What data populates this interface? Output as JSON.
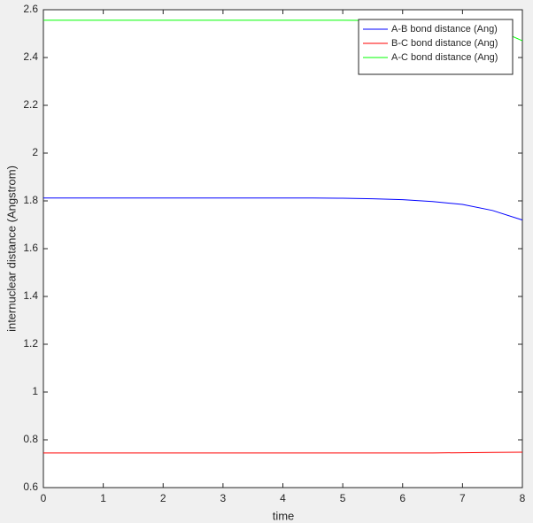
{
  "chart_data": {
    "type": "line",
    "x": [
      0,
      0.5,
      1,
      1.5,
      2,
      2.5,
      3,
      3.5,
      4,
      4.5,
      5,
      5.5,
      6,
      6.5,
      7,
      7.5,
      8
    ],
    "series": [
      {
        "name": "A-B bond distance (Ang)",
        "color": "#0000ff",
        "values": [
          1.812,
          1.812,
          1.812,
          1.812,
          1.812,
          1.812,
          1.812,
          1.812,
          1.812,
          1.812,
          1.811,
          1.809,
          1.805,
          1.797,
          1.785,
          1.76,
          1.72
        ]
      },
      {
        "name": "B-C bond distance (Ang)",
        "color": "#ff0000",
        "values": [
          0.745,
          0.745,
          0.745,
          0.745,
          0.745,
          0.745,
          0.745,
          0.745,
          0.745,
          0.745,
          0.745,
          0.745,
          0.745,
          0.745,
          0.746,
          0.747,
          0.748
        ]
      },
      {
        "name": "A-C bond distance (Ang)",
        "color": "#00ff00",
        "values": [
          2.556,
          2.556,
          2.556,
          2.556,
          2.556,
          2.556,
          2.556,
          2.556,
          2.556,
          2.556,
          2.556,
          2.555,
          2.555,
          2.552,
          2.543,
          2.525,
          2.47
        ]
      }
    ],
    "xlabel": "time",
    "ylabel": "internuclear distance (Angstrom)",
    "xlim": [
      0,
      8
    ],
    "xticks": [
      0,
      1,
      2,
      3,
      4,
      5,
      6,
      7,
      8
    ],
    "ylim": [
      0.6,
      2.6
    ],
    "yticks": [
      0.6,
      0.8,
      1,
      1.2,
      1.4,
      1.6,
      1.8,
      2,
      2.2,
      2.4,
      2.6
    ],
    "legend": "northeast"
  }
}
